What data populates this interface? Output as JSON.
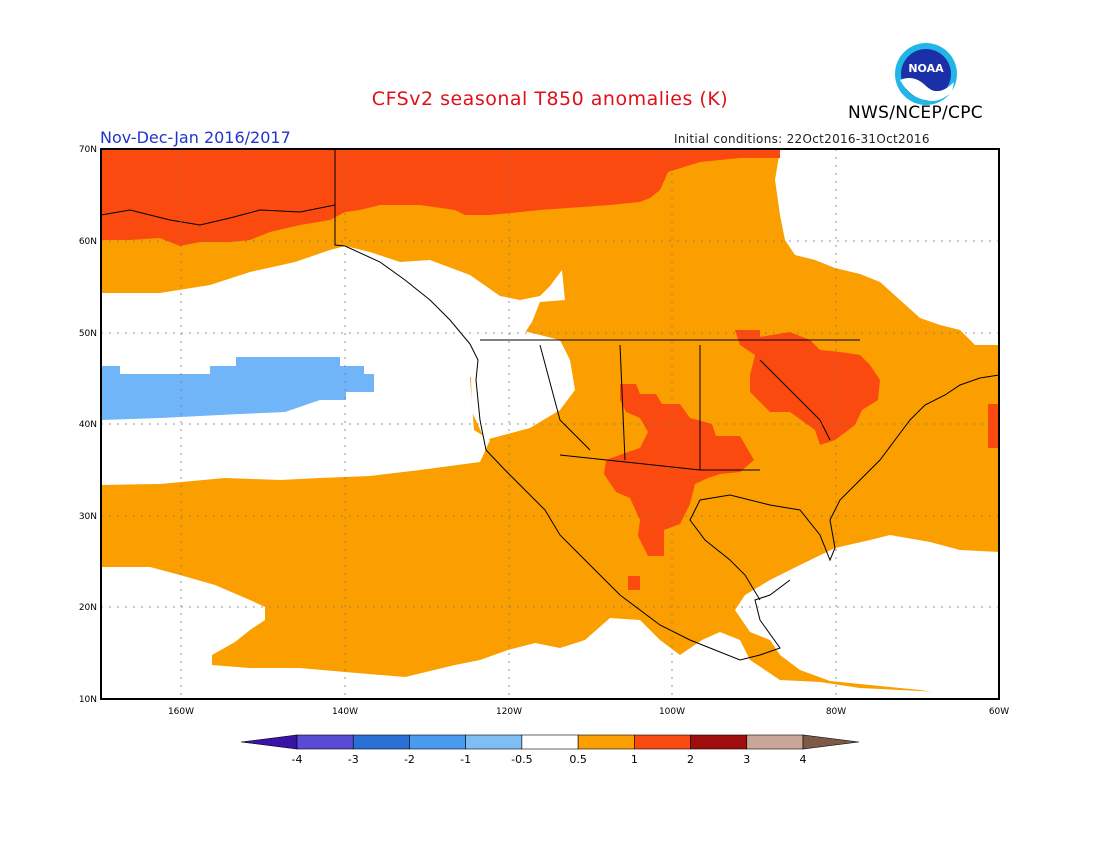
{
  "header": {
    "title": "CFSv2 seasonal T850 anomalies (K)",
    "agency": "NWS/NCEP/CPC",
    "period": "Nov-Dec-Jan 2016/2017",
    "initial_conditions": "Initial conditions: 22Oct2016-31Oct2016",
    "logo_text": "NOAA"
  },
  "colors": {
    "title": "#e0101a",
    "period": "#2233cc",
    "white": "#ffffff",
    "neg_lt": "#6fb5f7",
    "pos_05_1": "#fb9e00",
    "pos_1_2": "#fb4a10",
    "ocean_line": "#000000"
  },
  "axes": {
    "lat_labels": [
      "70N",
      "60N",
      "50N",
      "40N",
      "30N",
      "20N",
      "10N"
    ],
    "lon_labels": [
      "160W",
      "140W",
      "120W",
      "100W",
      "80W",
      "60W"
    ]
  },
  "colorbar": {
    "labels": [
      "-4",
      "-3",
      "-2",
      "-1",
      "-0.5",
      "0.5",
      "1",
      "2",
      "3",
      "4"
    ],
    "colors": [
      "#3a14a6",
      "#5a4ad6",
      "#2a6fd6",
      "#4a9af0",
      "#7fbdf5",
      "#ffffff",
      "#fb9e00",
      "#fb4a10",
      "#a00d0d",
      "#c9a796",
      "#7d5a48"
    ]
  }
}
